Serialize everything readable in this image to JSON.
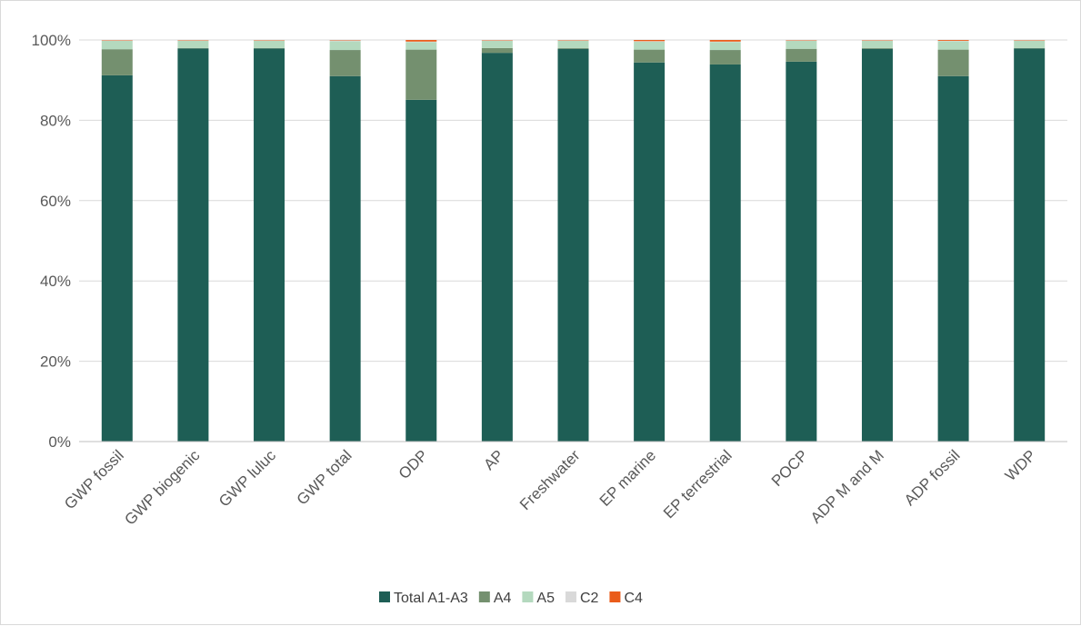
{
  "chart_data": {
    "type": "bar",
    "stacked": true,
    "percent": true,
    "categories": [
      "GWP fossil",
      "GWP biogenic",
      "GWP luluc",
      "GWP total",
      "ODP",
      "AP",
      "Freshwater",
      "EP marine",
      "EP terrestrial",
      "POCP",
      "ADP M and M",
      "ADP fossil",
      "WDP"
    ],
    "series": [
      {
        "name": "Total A1-A3",
        "color": "#1e5e55",
        "values": [
          91.2,
          97.9,
          97.9,
          91.0,
          85.1,
          96.8,
          97.8,
          94.4,
          93.9,
          94.6,
          97.8,
          91.0,
          97.9
        ]
      },
      {
        "name": "A4",
        "color": "#74906f",
        "values": [
          6.5,
          0.1,
          0.1,
          6.5,
          12.5,
          1.2,
          0.2,
          3.2,
          3.6,
          3.2,
          0.2,
          6.6,
          0.1
        ]
      },
      {
        "name": "A5",
        "color": "#b4d9be",
        "values": [
          2.1,
          1.8,
          1.8,
          2.2,
          1.9,
          1.8,
          1.8,
          2.0,
          2.0,
          2.0,
          1.8,
          2.1,
          1.8
        ]
      },
      {
        "name": "C2",
        "color": "#d9d9d9",
        "values": [
          0.1,
          0.1,
          0.1,
          0.2,
          0.1,
          0.1,
          0.1,
          0.1,
          0.1,
          0.1,
          0.1,
          0.1,
          0.1
        ]
      },
      {
        "name": "C4",
        "color": "#ea5c1a",
        "values": [
          0.1,
          0.1,
          0.1,
          0.1,
          0.4,
          0.1,
          0.1,
          0.3,
          0.4,
          0.1,
          0.1,
          0.2,
          0.1
        ]
      }
    ],
    "y_ticks": [
      "0%",
      "20%",
      "40%",
      "60%",
      "80%",
      "100%"
    ],
    "ylim": [
      0,
      100
    ],
    "grid": true,
    "legend_position": "bottom",
    "title": "",
    "xlabel": "",
    "ylabel": ""
  }
}
